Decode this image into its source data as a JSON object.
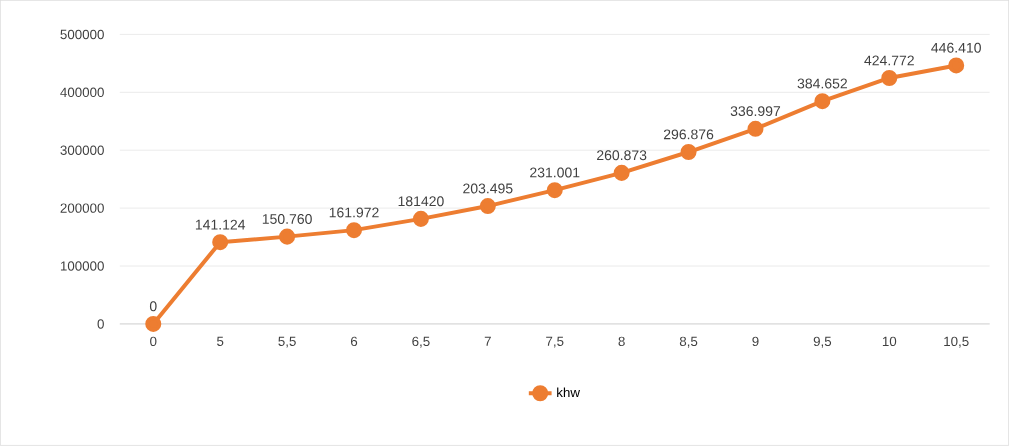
{
  "chart_data": {
    "type": "line",
    "categories": [
      "0",
      "5",
      "5,5",
      "6",
      "6,5",
      "7",
      "7,5",
      "8",
      "8,5",
      "9",
      "9,5",
      "10",
      "10,5"
    ],
    "series": [
      {
        "name": "khw",
        "color": "#ed7d31",
        "values": [
          0,
          141124,
          150760,
          161972,
          181420,
          203495,
          231001,
          260873,
          296876,
          336997,
          384652,
          424772,
          446410
        ],
        "value_labels": [
          "0",
          "141.124",
          "150.760",
          "161.972",
          "181420",
          "203.495",
          "231.001",
          "260.873",
          "296.876",
          "336.997",
          "384.652",
          "424.772",
          "446.410"
        ]
      }
    ],
    "ylim": [
      0,
      500000
    ],
    "yticks": [
      0,
      100000,
      200000,
      300000,
      400000,
      500000
    ],
    "grid": "y",
    "legend": "bottom",
    "marker": "circle",
    "line_style": "solid"
  }
}
